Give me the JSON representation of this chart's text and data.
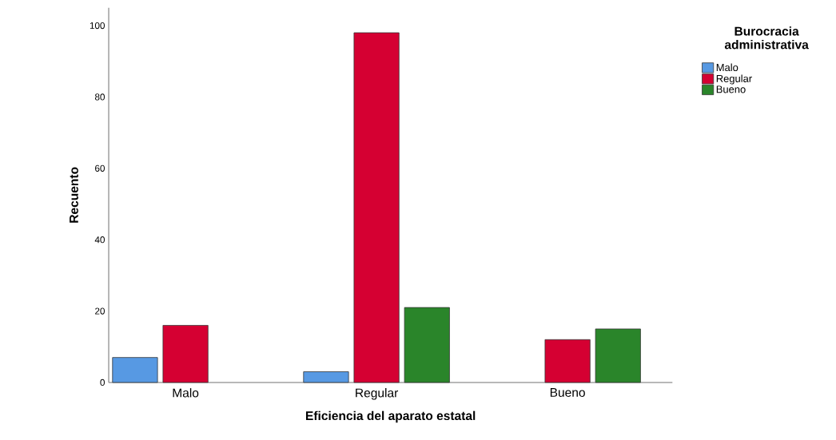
{
  "chart_data": {
    "type": "bar",
    "xlabel": "Eficiencia del aparato estatal",
    "ylabel": "Recuento",
    "legend_title": "Burocracia administrativa",
    "legend": "top right",
    "categories": [
      "Malo",
      "Regular",
      "Bueno"
    ],
    "ylim": [
      0,
      105
    ],
    "yticks": [
      0,
      20,
      40,
      60,
      80,
      100
    ],
    "series": [
      {
        "name": "Malo",
        "color": "#5799e3",
        "values": [
          7,
          3,
          null
        ]
      },
      {
        "name": "Regular",
        "color": "#d50032",
        "values": [
          16,
          98,
          12
        ]
      },
      {
        "name": "Bueno",
        "color": "#2a852a",
        "values": [
          null,
          21,
          15
        ]
      }
    ]
  }
}
